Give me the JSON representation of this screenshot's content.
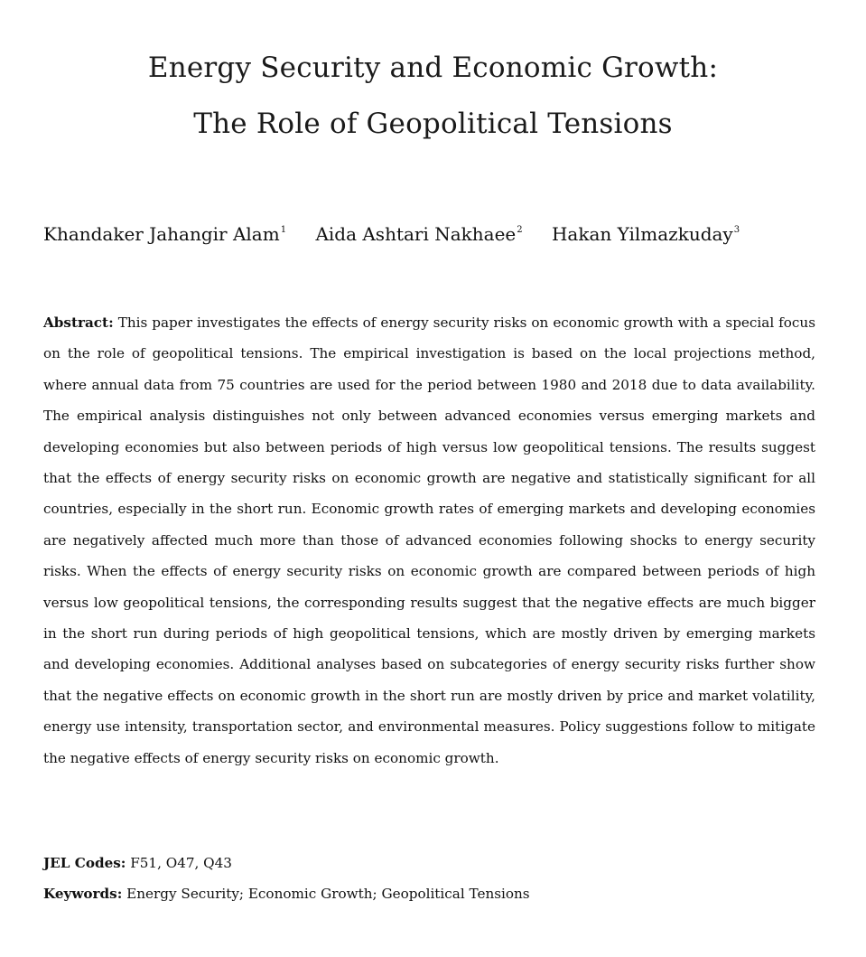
{
  "paper": {
    "title_line1": "Energy Security and Economic Growth:",
    "title_line2": "The Role of Geopolitical Tensions",
    "authors": [
      {
        "name": "Khandaker Jahangir Alam",
        "mark": "1"
      },
      {
        "name": "Aida Ashtari Nakhaee",
        "mark": "2"
      },
      {
        "name": "Hakan Yilmazkuday",
        "mark": "3"
      }
    ],
    "abstract_label": "Abstract:",
    "abstract_text": "This paper investigates the effects of energy security risks on economic growth with a special focus on the role of geopolitical tensions. The empirical investigation is based on the local projections method, where annual data from 75 countries are used for the period between 1980 and 2018 due to data availability. The empirical analysis distinguishes not only between advanced economies versus emerging markets and developing economies but also between periods of high versus low geopolitical tensions. The results suggest that the effects of energy security risks on economic growth are negative and statistically significant for all countries, especially in the short run. Economic growth rates of emerging markets and developing economies are negatively affected much more than those of advanced economies following shocks to energy security risks. When the effects of energy security risks on economic growth are compared between periods of high versus low geopolitical tensions, the corresponding results suggest that the negative effects are much bigger in the short run during periods of high geopolitical tensions, which are mostly driven by emerging markets and developing economies. Additional analyses based on subcategories of energy security risks further show that the negative effects on economic growth in the short run are mostly driven by price and market volatility, energy use intensity, transportation sector, and environmental measures. Policy suggestions follow to mitigate the negative effects of energy security risks on economic growth.",
    "jel_label": "JEL Codes:",
    "jel_text": "F51, O47, Q43",
    "keywords_label": "Keywords:",
    "keywords_text": "Energy Security; Economic Growth; Geopolitical Tensions"
  }
}
